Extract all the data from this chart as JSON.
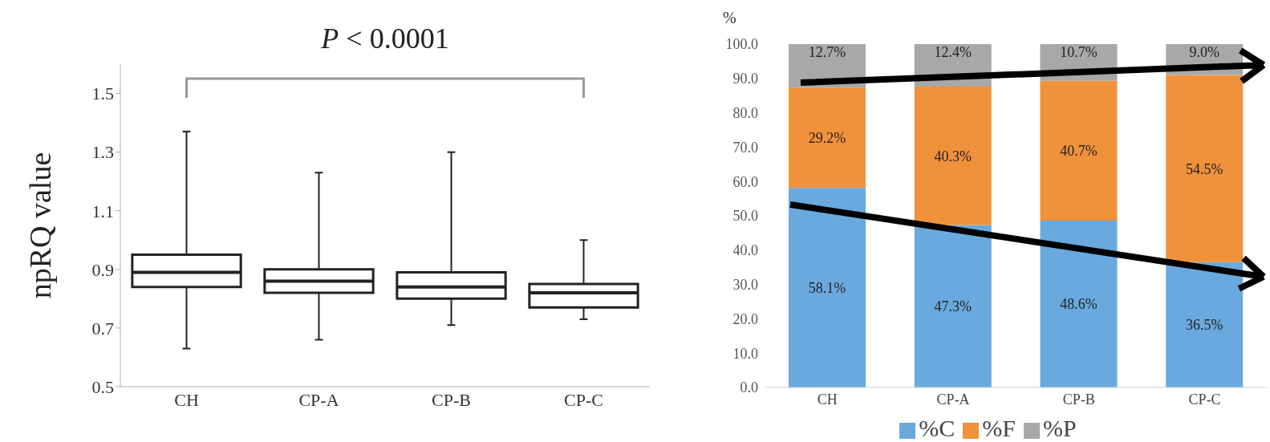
{
  "chart_data": [
    {
      "type": "box",
      "categories": [
        "CH",
        "CP-A",
        "CP-B",
        "CP-C"
      ],
      "ylabel": "npRQ value",
      "annotations": [
        "P < 0.0001"
      ],
      "ylim": [
        0.5,
        1.6
      ],
      "yticks": [
        0.5,
        0.7,
        0.9,
        1.1,
        1.3,
        1.5
      ],
      "boxes": [
        {
          "low": 0.63,
          "q1": 0.84,
          "median": 0.89,
          "q3": 0.95,
          "high": 1.37
        },
        {
          "low": 0.66,
          "q1": 0.82,
          "median": 0.86,
          "q3": 0.9,
          "high": 1.23
        },
        {
          "low": 0.71,
          "q1": 0.8,
          "median": 0.84,
          "q3": 0.89,
          "high": 1.3
        },
        {
          "low": 0.73,
          "q1": 0.77,
          "median": 0.82,
          "q3": 0.85,
          "high": 1.0
        }
      ]
    },
    {
      "type": "bar",
      "stacked": true,
      "categories": [
        "CH",
        "CP-A",
        "CP-B",
        "CP-C"
      ],
      "ylabel": "%",
      "ylim": [
        0,
        100
      ],
      "legend": "bottom",
      "yticks": [
        {
          "value": 0,
          "label": "0.0"
        },
        {
          "value": 10,
          "label": "10.0"
        },
        {
          "value": 20,
          "label": "20.0"
        },
        {
          "value": 30,
          "label": "30.0"
        },
        {
          "value": 40,
          "label": "40.0"
        },
        {
          "value": 50,
          "label": "50.0"
        },
        {
          "value": 60,
          "label": "60.0"
        },
        {
          "value": 70,
          "label": "70.0"
        },
        {
          "value": 80,
          "label": "80.0"
        },
        {
          "value": 90,
          "label": "90.0"
        },
        {
          "value": 100,
          "label": "100.0"
        }
      ],
      "series": [
        {
          "name": "%C",
          "color": "#6aa9dd",
          "values": [
            58.1,
            47.3,
            48.6,
            36.5
          ],
          "value_labels": [
            "58.1%",
            "47.3%",
            "48.6%",
            "36.5%"
          ]
        },
        {
          "name": "%F",
          "color": "#f0913c",
          "values": [
            29.2,
            40.3,
            40.7,
            54.5
          ],
          "value_labels": [
            "29.2%",
            "40.3%",
            "40.7%",
            "54.5%"
          ]
        },
        {
          "name": "%P",
          "color": "#a8a8a8",
          "values": [
            12.7,
            12.4,
            10.7,
            9.0
          ],
          "value_labels": [
            "12.7%",
            "12.4%",
            "10.7%",
            "9.0%"
          ]
        }
      ]
    }
  ]
}
